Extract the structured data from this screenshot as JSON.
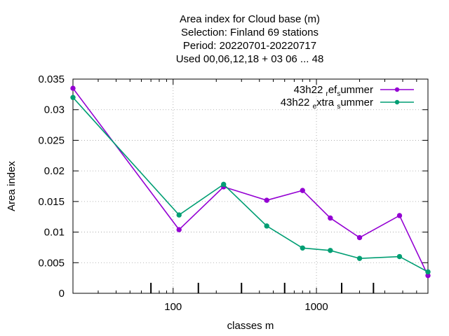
{
  "chart_data": {
    "type": "line",
    "title_lines": [
      "Area index  for Cloud base (m)",
      "Selection: Finland     69 stations",
      "Period: 20220701-20220717",
      "Used  00,06,12,18  + 03 06 ... 48"
    ],
    "xlabel": "classes m",
    "ylabel": "Area index",
    "x_scale": "log",
    "xlim": [
      20,
      6000
    ],
    "ylim": [
      0,
      0.035
    ],
    "x_ticks": [
      {
        "value": 100,
        "label": "100"
      },
      {
        "value": 1000,
        "label": "1000"
      }
    ],
    "y_ticks": [
      {
        "value": 0,
        "label": "0"
      },
      {
        "value": 0.005,
        "label": "0.005"
      },
      {
        "value": 0.01,
        "label": "0.01"
      },
      {
        "value": 0.015,
        "label": "0.015"
      },
      {
        "value": 0.02,
        "label": "0.02"
      },
      {
        "value": 0.025,
        "label": "0.025"
      },
      {
        "value": 0.03,
        "label": "0.03"
      },
      {
        "value": 0.035,
        "label": "0.035"
      }
    ],
    "grid": true,
    "legend_position": "top-right",
    "class_marks": [
      70,
      150,
      300,
      600,
      1500,
      2500
    ],
    "series": [
      {
        "name_parts": [
          "43h22 ",
          "r",
          "ef",
          "s",
          "ummer"
        ],
        "color": "#9400d3",
        "x": [
          20,
          110,
          225,
          450,
          800,
          1250,
          2000,
          3800,
          6000
        ],
        "y": [
          0.0335,
          0.0104,
          0.0174,
          0.0152,
          0.0168,
          0.0123,
          0.0091,
          0.0127,
          0.0029
        ]
      },
      {
        "name_parts": [
          "43h22 ",
          "e",
          "xtra ",
          "s",
          "ummer"
        ],
        "color": "#009e73",
        "x": [
          20,
          110,
          225,
          450,
          800,
          1250,
          2000,
          3800,
          6000
        ],
        "y": [
          0.032,
          0.0128,
          0.0178,
          0.011,
          0.0074,
          0.007,
          0.0057,
          0.006,
          0.0035
        ]
      }
    ]
  }
}
